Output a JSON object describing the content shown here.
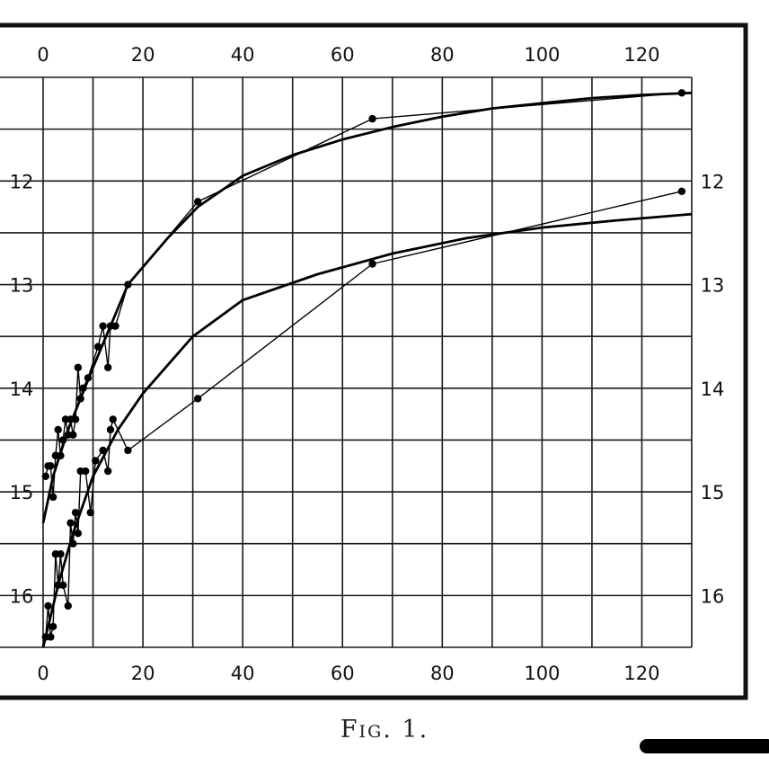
{
  "caption": "Fig. 1.",
  "chart_data": {
    "type": "line",
    "title": "",
    "xlabel": "",
    "ylabel": "",
    "xlim": [
      0,
      130
    ],
    "ylim": [
      16.5,
      11.0
    ],
    "y_inverted": true,
    "grid": true,
    "x_ticks": [
      0,
      20,
      40,
      60,
      80,
      100,
      120
    ],
    "x_tick_labels": [
      "0",
      "20",
      "40",
      "60",
      "80",
      "100",
      "120"
    ],
    "y_ticks": [
      12,
      13,
      14,
      15,
      16
    ],
    "y_tick_labels": [
      "12",
      "13",
      "14",
      "15",
      "16"
    ],
    "series": [
      {
        "kind": "observed",
        "points": [
          [
            0.5,
            14.85
          ],
          [
            1,
            14.75
          ],
          [
            1.5,
            14.75
          ],
          [
            2,
            15.05
          ],
          [
            2.5,
            14.65
          ],
          [
            3,
            14.4
          ],
          [
            3.5,
            14.65
          ],
          [
            4,
            14.5
          ],
          [
            4.5,
            14.3
          ],
          [
            5,
            14.45
          ],
          [
            5.5,
            14.3
          ],
          [
            6,
            14.45
          ],
          [
            6.5,
            14.3
          ],
          [
            7,
            13.8
          ],
          [
            7.5,
            14.1
          ],
          [
            8,
            14.0
          ],
          [
            9,
            13.9
          ],
          [
            11,
            13.6
          ],
          [
            12,
            13.4
          ],
          [
            13,
            13.8
          ],
          [
            13.5,
            13.4
          ],
          [
            14.5,
            13.4
          ],
          [
            17,
            13.0
          ],
          [
            31,
            12.2
          ],
          [
            66,
            11.4
          ],
          [
            128,
            11.15
          ]
        ]
      },
      {
        "kind": "fitted",
        "points": [
          [
            0,
            15.3
          ],
          [
            2,
            14.85
          ],
          [
            5,
            14.4
          ],
          [
            10,
            13.8
          ],
          [
            17,
            13.0
          ],
          [
            25,
            12.55
          ],
          [
            31,
            12.25
          ],
          [
            40,
            11.95
          ],
          [
            50,
            11.75
          ],
          [
            60,
            11.6
          ],
          [
            70,
            11.48
          ],
          [
            80,
            11.38
          ],
          [
            90,
            11.3
          ],
          [
            100,
            11.25
          ],
          [
            110,
            11.2
          ],
          [
            120,
            11.17
          ],
          [
            130,
            11.15
          ]
        ]
      },
      {
        "kind": "observed",
        "points": [
          [
            0.5,
            16.4
          ],
          [
            1,
            16.1
          ],
          [
            1.5,
            16.4
          ],
          [
            2,
            16.3
          ],
          [
            2.5,
            15.6
          ],
          [
            3,
            15.9
          ],
          [
            3.5,
            15.6
          ],
          [
            4,
            15.9
          ],
          [
            5,
            16.1
          ],
          [
            5.5,
            15.3
          ],
          [
            6,
            15.5
          ],
          [
            6.5,
            15.2
          ],
          [
            7,
            15.4
          ],
          [
            7.5,
            14.8
          ],
          [
            8.5,
            14.8
          ],
          [
            9.5,
            15.2
          ],
          [
            10.5,
            14.7
          ],
          [
            12,
            14.6
          ],
          [
            13,
            14.8
          ],
          [
            13.5,
            14.4
          ],
          [
            14,
            14.3
          ],
          [
            17,
            14.6
          ],
          [
            31,
            14.1
          ],
          [
            66,
            12.8
          ],
          [
            128,
            12.1
          ]
        ]
      },
      {
        "kind": "fitted",
        "points": [
          [
            0,
            16.5
          ],
          [
            3,
            15.9
          ],
          [
            6,
            15.4
          ],
          [
            10,
            14.85
          ],
          [
            15,
            14.4
          ],
          [
            20,
            14.05
          ],
          [
            30,
            13.5
          ],
          [
            40,
            13.15
          ],
          [
            55,
            12.9
          ],
          [
            70,
            12.7
          ],
          [
            85,
            12.55
          ],
          [
            100,
            12.45
          ],
          [
            115,
            12.38
          ],
          [
            130,
            12.32
          ]
        ]
      }
    ]
  }
}
